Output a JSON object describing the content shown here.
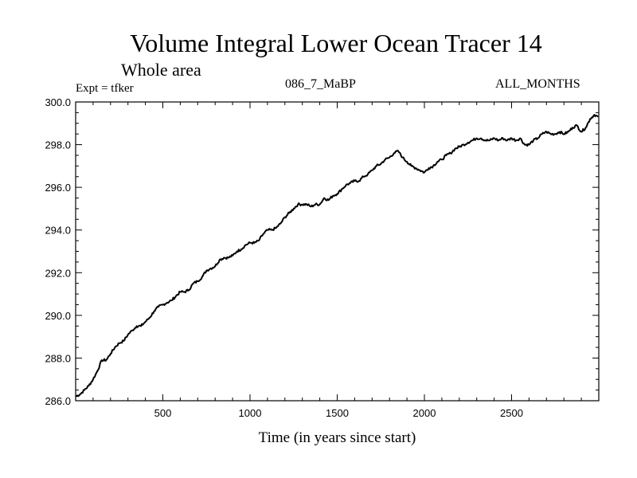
{
  "header": {
    "title": "Volume Integral Lower Ocean Tracer 14",
    "subtitle": "Whole area",
    "experiment": "Expt = tfker",
    "run_label": "086_7_MaBP",
    "period_label": "ALL_MONTHS"
  },
  "chart_data": {
    "type": "line",
    "title": "Volume Integral Lower Ocean Tracer 14",
    "xlabel": "Time (in years since start)",
    "ylabel": "",
    "xlim": [
      0,
      3000
    ],
    "ylim": [
      286.0,
      300.0
    ],
    "x_ticks": [
      500,
      1000,
      1500,
      2000,
      2500
    ],
    "x_tick_labels": [
      "500",
      "1000",
      "1500",
      "2000",
      "2500"
    ],
    "y_ticks": [
      286.0,
      288.0,
      290.0,
      292.0,
      294.0,
      296.0,
      298.0,
      300.0
    ],
    "y_tick_labels": [
      "286.0",
      "288.0",
      "290.0",
      "292.0",
      "294.0",
      "296.0",
      "298.0",
      "300.0"
    ],
    "grid": false,
    "legend": "none",
    "line_color": "#000000",
    "series": [
      {
        "x": [
          0,
          25,
          50,
          75,
          100,
          125,
          150,
          175,
          200,
          225,
          250,
          275,
          300,
          325,
          350,
          375,
          400,
          425,
          450,
          475,
          500,
          525,
          550,
          575,
          600,
          625,
          650,
          675,
          700,
          725,
          750,
          775,
          800,
          825,
          850,
          875,
          900,
          925,
          950,
          975,
          1000,
          1025,
          1050,
          1075,
          1100,
          1125,
          1150,
          1175,
          1200,
          1225,
          1250,
          1275,
          1300,
          1325,
          1350,
          1375,
          1400,
          1425,
          1450,
          1475,
          1500,
          1525,
          1550,
          1575,
          1600,
          1625,
          1650,
          1675,
          1700,
          1725,
          1750,
          1775,
          1800,
          1825,
          1850,
          1875,
          1900,
          1925,
          1950,
          1975,
          2000,
          2025,
          2050,
          2075,
          2100,
          2125,
          2150,
          2175,
          2200,
          2225,
          2250,
          2275,
          2300,
          2325,
          2350,
          2375,
          2400,
          2425,
          2450,
          2475,
          2500,
          2525,
          2550,
          2575,
          2600,
          2625,
          2650,
          2675,
          2700,
          2725,
          2750,
          2775,
          2800,
          2825,
          2850,
          2875,
          2900,
          2925,
          2950,
          2975,
          2995
        ],
        "values": [
          286.2,
          286.3,
          286.5,
          286.7,
          287.0,
          287.4,
          287.9,
          287.9,
          288.2,
          288.5,
          288.7,
          288.8,
          289.1,
          289.3,
          289.5,
          289.5,
          289.7,
          289.9,
          290.2,
          290.4,
          290.5,
          290.6,
          290.7,
          290.9,
          291.1,
          291.1,
          291.2,
          291.5,
          291.6,
          291.8,
          292.1,
          292.2,
          292.3,
          292.6,
          292.7,
          292.7,
          292.8,
          293.0,
          293.1,
          293.3,
          293.4,
          293.4,
          293.5,
          293.8,
          294.0,
          294.0,
          294.1,
          294.3,
          294.6,
          294.8,
          295.0,
          295.2,
          295.2,
          295.2,
          295.1,
          295.2,
          295.2,
          295.5,
          295.4,
          295.6,
          295.7,
          295.9,
          296.1,
          296.2,
          296.3,
          296.3,
          296.5,
          296.6,
          296.8,
          297.0,
          297.1,
          297.3,
          297.4,
          297.6,
          297.7,
          297.4,
          297.2,
          297.0,
          296.9,
          296.8,
          296.7,
          296.9,
          297.0,
          297.2,
          297.3,
          297.5,
          297.6,
          297.8,
          297.9,
          298.0,
          298.1,
          298.2,
          298.3,
          298.3,
          298.2,
          298.2,
          298.3,
          298.2,
          298.3,
          298.2,
          298.3,
          298.2,
          298.3,
          298.0,
          298.0,
          298.2,
          298.3,
          298.5,
          298.6,
          298.5,
          298.5,
          298.6,
          298.5,
          298.6,
          298.8,
          298.9,
          298.6,
          298.8,
          299.2,
          299.4,
          299.3
        ]
      }
    ]
  }
}
